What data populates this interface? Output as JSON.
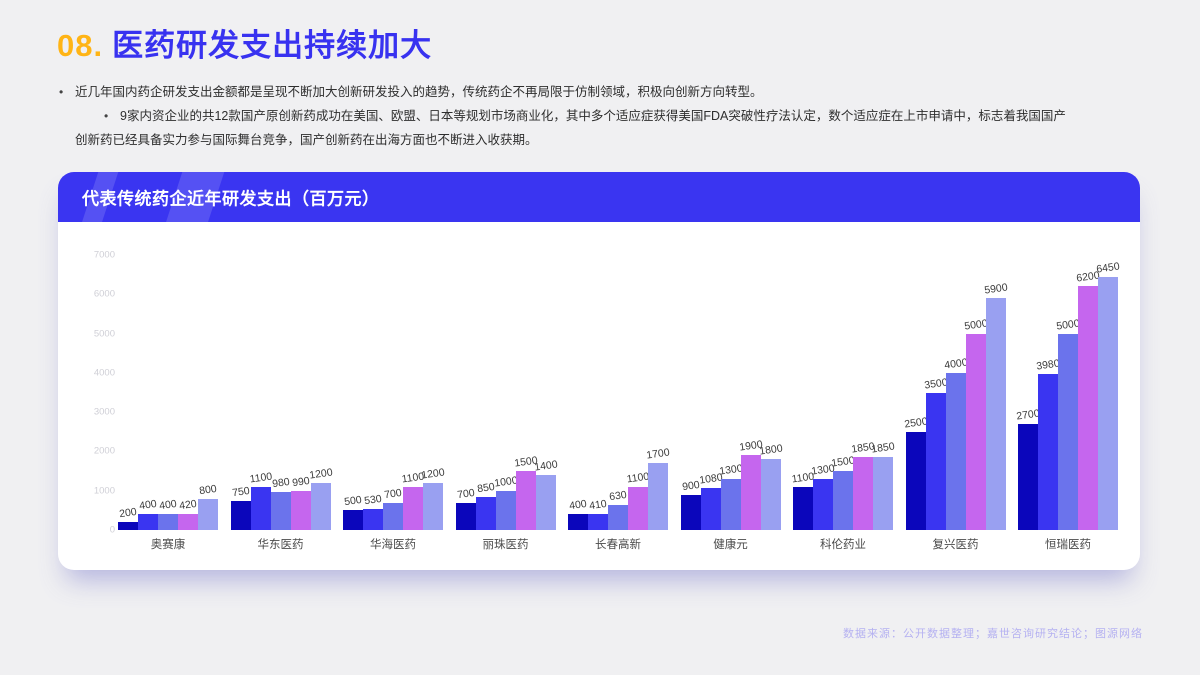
{
  "header": {
    "number": "08.",
    "title": "医药研发支出持续加大"
  },
  "bullets": [
    {
      "text": "近几年国内药企研发支出金额都是呈现不断加大创新研发投入的趋势，传统药企不再局限于仿制领域，积极向创新方向转型。"
    },
    {
      "text": "9家内资企业的共12款国产原创新药成功在美国、欧盟、日本等规划市场商业化，其中多个适应症获得美国FDA突破性疗法认定，数个适应症在上市申请中，标志着我国国产创新药已经具备实力参与国际舞台竞争，国产创新药在出海方面也不断进入收获期。"
    }
  ],
  "chart_card": {
    "title": "代表传统药企近年研发支出（百万元）"
  },
  "chart_data": {
    "type": "bar",
    "title": "代表传统药企近年研发支出（百万元）",
    "xlabel": "",
    "ylabel": "",
    "ylim": [
      0,
      7000
    ],
    "yticks": [
      0,
      1000,
      2000,
      3000,
      4000,
      5000,
      6000,
      7000
    ],
    "grid": false,
    "legend": "none",
    "categories": [
      "奥赛康",
      "华东医药",
      "华海医药",
      "丽珠医药",
      "长春高新",
      "健康元",
      "科伦药业",
      "复兴医药",
      "恒瑞医药"
    ],
    "series": [
      {
        "name": "bar-1",
        "color": "#0b06bb",
        "values": [
          200,
          750,
          500,
          700,
          400,
          900,
          1100,
          2500,
          2700
        ]
      },
      {
        "name": "bar-2",
        "color": "#3a35f1",
        "values": [
          400,
          1100,
          530,
          850,
          410,
          1080,
          1300,
          3500,
          3980
        ]
      },
      {
        "name": "bar-3",
        "color": "#6b73ec",
        "values": [
          400,
          980,
          700,
          1000,
          630,
          1300,
          1500,
          4000,
          5000
        ]
      },
      {
        "name": "bar-4",
        "color": "#c566ee",
        "values": [
          420,
          990,
          1100,
          1500,
          1100,
          1900,
          1850,
          5000,
          6200
        ]
      },
      {
        "name": "bar-5",
        "color": "#99a0f1",
        "values": [
          800,
          1200,
          1200,
          1400,
          1700,
          1800,
          1850,
          5900,
          6450
        ]
      }
    ]
  },
  "footer": {
    "source": "数据来源：公开数据整理；嘉世咨询研究结论；图源网络"
  },
  "colors": {
    "accent_orange": "#ffb415",
    "accent_blue": "#3832f0",
    "banner_blue": "#3a35f1",
    "page_background": "#f0f0f2",
    "footer_text": "#b5b1f1",
    "tick_text": "#cfcfd6"
  }
}
